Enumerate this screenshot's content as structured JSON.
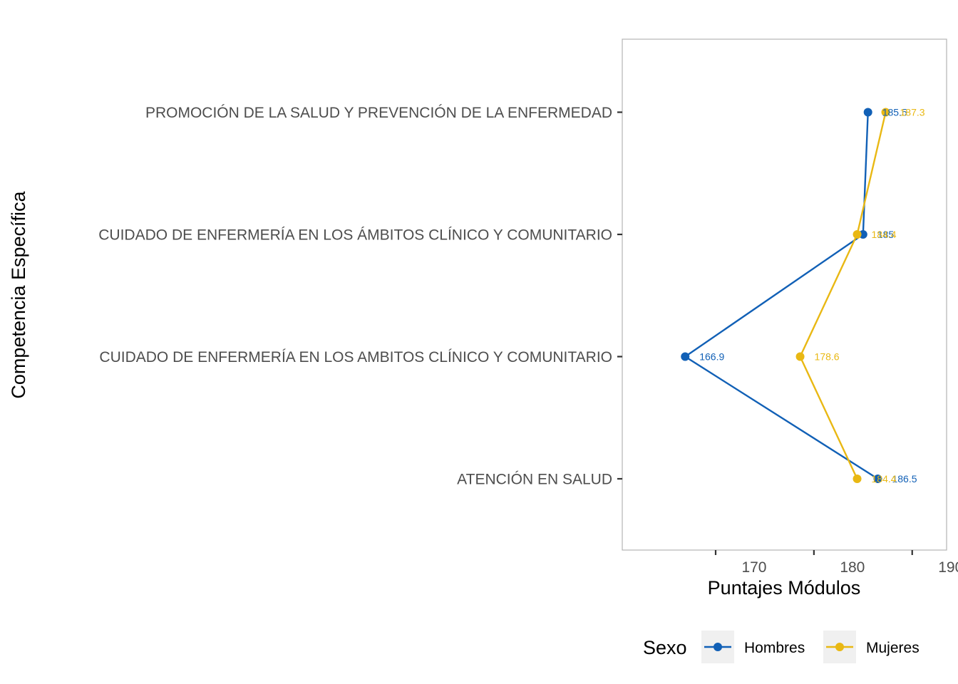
{
  "chart_data": {
    "type": "line",
    "xlabel": "Puntajes Módulos",
    "ylabel": "Competencia Específica",
    "xlim": [
      160.5,
      193.5
    ],
    "x_ticks": [
      170,
      180,
      190
    ],
    "x_tick_labels": [
      "170",
      "180",
      "190"
    ],
    "categories": [
      "ATENCIÓN EN SALUD",
      "CUIDADO DE ENFERMERÍA EN LOS AMBITOS CLÍNICO Y COMUNITARIO",
      "CUIDADO DE ENFERMERÍA EN LOS ÁMBITOS CLÍNICO Y COMUNITARIO",
      "PROMOCIÓN DE LA SALUD Y PREVENCIÓN DE LA ENFERMEDAD"
    ],
    "series": [
      {
        "name": "Hombres",
        "color": "#1160B6",
        "values": [
          186.5,
          166.9,
          185,
          185.5
        ],
        "labels": [
          "186.5",
          "166.9",
          "185",
          "185.5"
        ]
      },
      {
        "name": "Mujeres",
        "color": "#E9B813",
        "values": [
          184.4,
          178.6,
          184.4,
          187.3
        ],
        "labels": [
          "184.4",
          "178.6",
          "184.4",
          "187.3"
        ]
      }
    ],
    "legend": {
      "title": "Sexo",
      "position": "bottom"
    },
    "grid": false,
    "panel_border": true
  }
}
